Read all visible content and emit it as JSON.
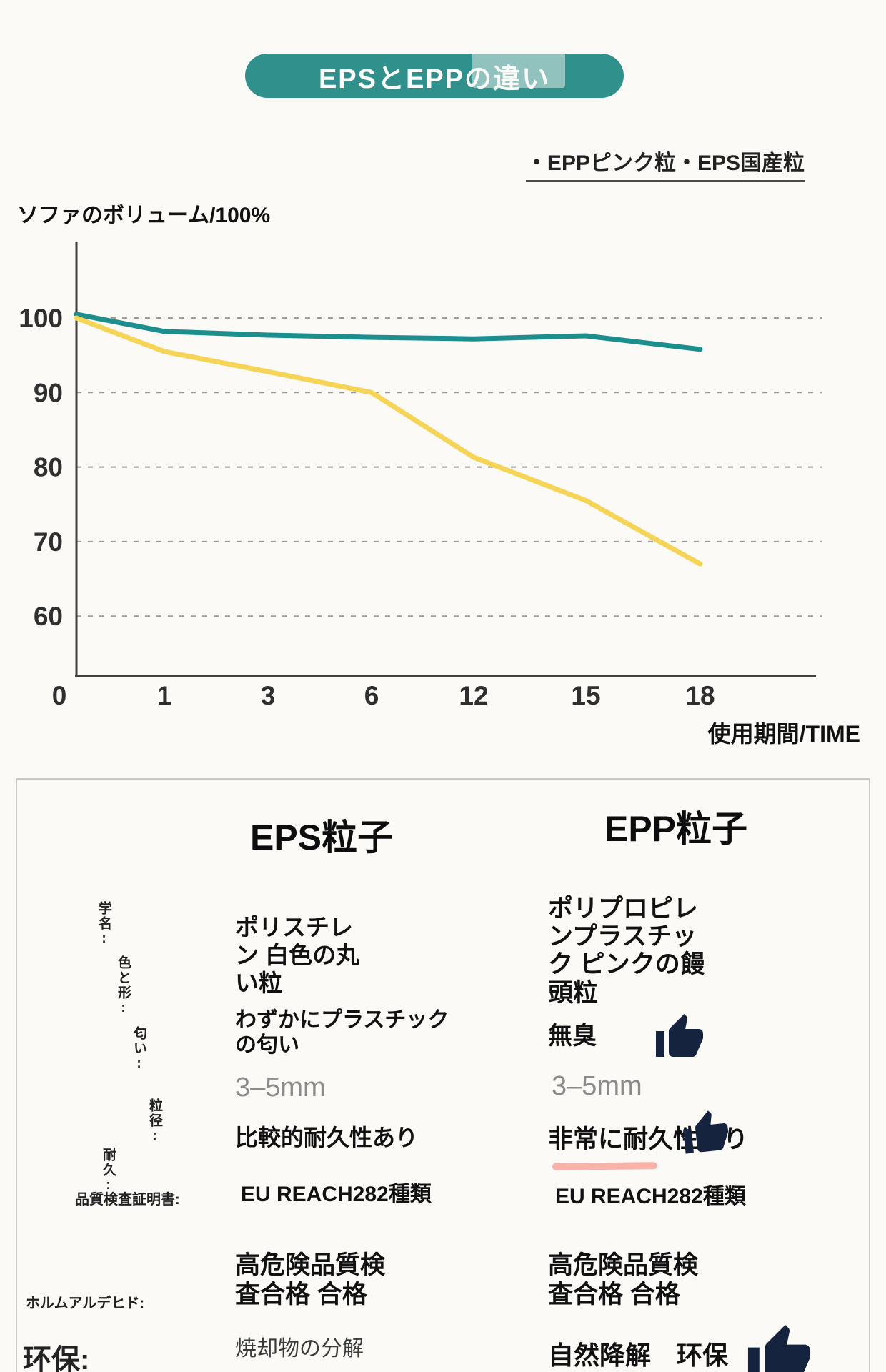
{
  "header": {
    "title": "EPSとEPPの違い",
    "badge_color": "#2f908c"
  },
  "chart": {
    "legend_text": "・EPPピンク粒・EPS国産粒",
    "y_axis_title": "ソファのボリューム/100%",
    "x_axis_title": "使用期間/TIME"
  },
  "chart_data": {
    "type": "line",
    "x_tick_labels": [
      "0",
      "1",
      "3",
      "6",
      "12",
      "15",
      "18"
    ],
    "y_ticks": [
      100,
      90,
      80,
      70,
      60
    ],
    "ylim": [
      55,
      105
    ],
    "grid": "horizontal-dashed",
    "xlabel": "使用期間/TIME",
    "ylabel": "ソファのボリューム/100%",
    "legend": [
      "EPPピンク粒",
      "EPS国産粒"
    ],
    "series": [
      {
        "key": "epp",
        "name": "EPPピンク粒",
        "color": "#1d8e8e",
        "values": [
          100.5,
          98.2,
          97.7,
          97.4,
          97.2,
          97.6,
          95.8
        ]
      },
      {
        "key": "eps",
        "name": "EPS国産粒",
        "color": "#f6d455",
        "values": [
          100,
          95.5,
          92.8,
          90,
          81.3,
          75.5,
          67
        ]
      }
    ]
  },
  "table": {
    "headers": {
      "eps": "EPS粒子",
      "epp": "EPP粒子"
    },
    "row_labels": {
      "name": "学名:",
      "color_shape": "色と形:",
      "smell": "匂い:",
      "size": "粒径:",
      "durability": "耐久:",
      "certificate": "品質検査証明書:",
      "formaldehyde": "ホルムアルデヒド:",
      "eco": "环保:"
    },
    "eps": {
      "name": "ポリスチレ\nン 白色の丸\nい粒",
      "smell": "わずかにプラスチック\nの匂い",
      "size": "3–5mm",
      "durability": "比較的耐久性あり",
      "certificate": "EU REACH282種類",
      "inspection": "高危険品質検\n査合格 合格",
      "eco": "焼却物の分解"
    },
    "epp": {
      "name": "ポリプロピレ\nンプラスチッ\nク ピンクの饅\n頭粒",
      "smell": "無臭",
      "size": "3–5mm",
      "durability": "非常に耐久性あり",
      "certificate": "EU REACH282種類",
      "inspection": "高危険品質検\n査合格 合格",
      "eco": "自然降解　环保"
    }
  }
}
